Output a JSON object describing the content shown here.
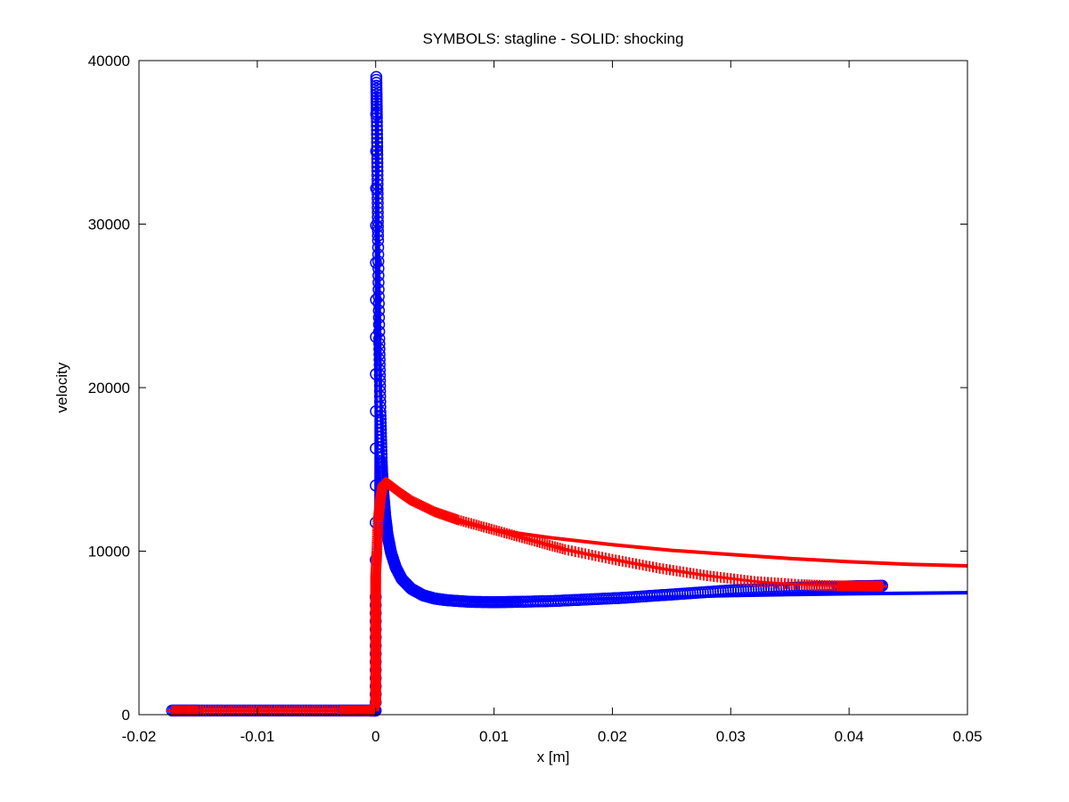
{
  "chart_data": {
    "type": "scatter",
    "title": "SYMBOLS: stagline - SOLID: shocking",
    "xlabel": "x [m]",
    "ylabel": "velocity",
    "xlim": [
      -0.02,
      0.05
    ],
    "ylim": [
      0,
      40000
    ],
    "xticks": [
      -0.02,
      -0.01,
      0,
      0.01,
      0.02,
      0.03,
      0.04,
      0.05
    ],
    "xtick_labels": [
      "-0.02",
      "-0.01",
      "0",
      "0.01",
      "0.02",
      "0.03",
      "0.04",
      "0.05"
    ],
    "yticks": [
      0,
      10000,
      20000,
      30000,
      40000
    ],
    "ytick_labels": [
      "0",
      "10000",
      "20000",
      "30000",
      "40000"
    ],
    "grid": false,
    "colors": {
      "blue": "#0000ff",
      "red": "#ff0000"
    },
    "series": [
      {
        "style": "line",
        "color": "#0000ff",
        "x": [
          -0.0172,
          -0.002,
          -0.0002,
          0,
          0.0001,
          0.0002,
          0.0004,
          0.0006,
          0.0008,
          0.001,
          0.0015,
          0.002,
          0.003,
          0.004,
          0.006,
          0.008,
          0.01,
          0.012,
          0.015,
          0.02,
          0.025,
          0.03,
          0.035,
          0.04,
          0.045,
          0.05
        ],
        "y": [
          250,
          250,
          250,
          250,
          38000,
          30000,
          20000,
          15500,
          13000,
          11500,
          9800,
          8900,
          8000,
          7500,
          7100,
          6950,
          6900,
          6920,
          7000,
          7100,
          7200,
          7280,
          7340,
          7390,
          7430,
          7460
        ]
      },
      {
        "style": "line",
        "color": "#ff0000",
        "x": [
          -0.0172,
          -0.0002,
          0,
          0.0002,
          0.0004,
          0.0006,
          0.0008,
          0.001,
          0.002,
          0.003,
          0.005,
          0.007,
          0.01,
          0.015,
          0.02,
          0.025,
          0.03,
          0.035,
          0.04,
          0.045,
          0.05
        ],
        "y": [
          250,
          250,
          300,
          6000,
          12000,
          13800,
          14200,
          14100,
          13400,
          12900,
          12300,
          11800,
          11300,
          10800,
          10400,
          10050,
          9800,
          9550,
          9350,
          9200,
          9100
        ]
      },
      {
        "style": "markers-circle",
        "color": "#0000ff",
        "x": [
          -0.0172,
          -0.015,
          -0.012,
          -0.009,
          -0.006,
          -0.003,
          -0.0005,
          0,
          0,
          5e-05,
          0.0001,
          0.00015,
          0.0002,
          0.0003,
          0.0004,
          0.0005,
          0.0006,
          0.0008,
          0.001,
          0.0013,
          0.0017,
          0.0022,
          0.003,
          0.004,
          0.005,
          0.006,
          0.008,
          0.01,
          0.012,
          0.015,
          0.018,
          0.021,
          0.024,
          0.027,
          0.03,
          0.033,
          0.036,
          0.039,
          0.041,
          0.0428
        ],
        "y": [
          250,
          250,
          250,
          250,
          250,
          250,
          250,
          250,
          7200,
          39000,
          36500,
          33000,
          29000,
          23000,
          18500,
          15500,
          14000,
          12200,
          11000,
          9900,
          9000,
          8300,
          7700,
          7300,
          7100,
          7000,
          6900,
          6880,
          6900,
          6950,
          7050,
          7150,
          7300,
          7450,
          7600,
          7700,
          7780,
          7830,
          7860,
          7880
        ]
      },
      {
        "style": "markers-plus",
        "color": "#ff0000",
        "x": [
          -0.0172,
          -0.015,
          -0.012,
          -0.009,
          -0.006,
          -0.003,
          -0.001,
          -0.0002,
          0,
          0,
          0,
          0,
          0,
          0,
          0,
          0,
          0,
          0.0001,
          0.0002,
          0.0004,
          0.0006,
          0.0008,
          0.001,
          0.002,
          0.003,
          0.005,
          0.007,
          0.01,
          0.013,
          0.016,
          0.02,
          0.024,
          0.028,
          0.032,
          0.036,
          0.039,
          0.041,
          0.0428
        ],
        "y": [
          250,
          250,
          250,
          250,
          250,
          250,
          250,
          250,
          700,
          1500,
          2500,
          3500,
          4500,
          5500,
          6500,
          7500,
          8500,
          10000,
          11800,
          13200,
          14000,
          14200,
          14150,
          13600,
          13100,
          12400,
          11900,
          11300,
          10700,
          10100,
          9500,
          8950,
          8500,
          8150,
          7950,
          7880,
          7870,
          7860
        ]
      }
    ]
  }
}
